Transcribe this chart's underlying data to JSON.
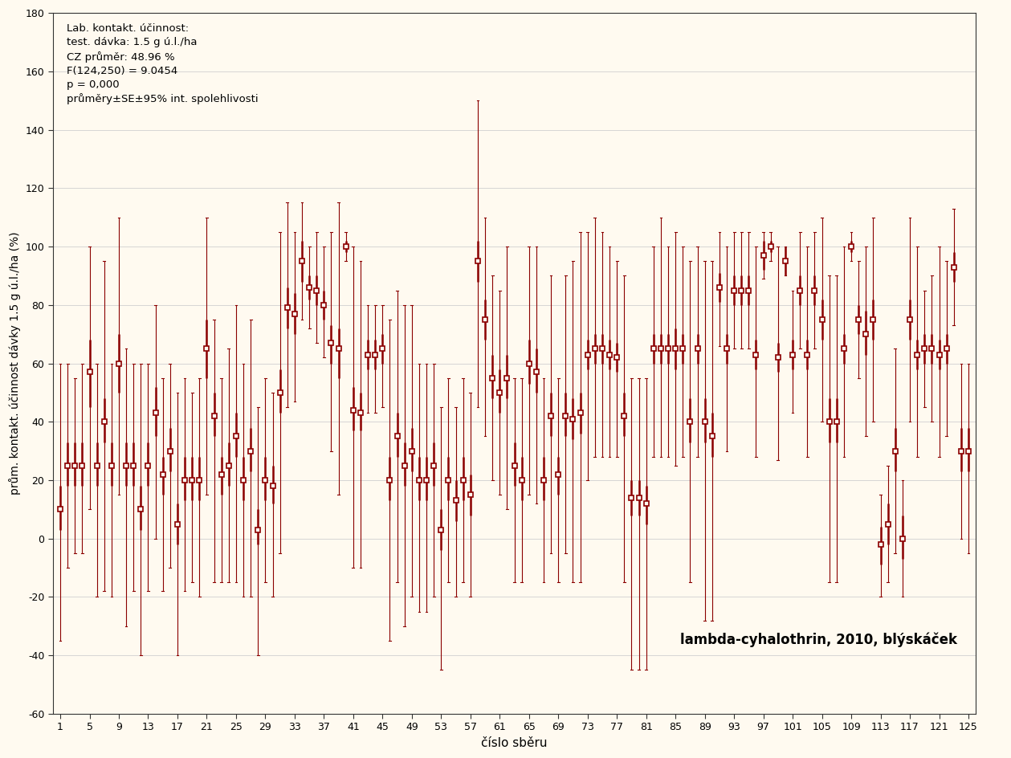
{
  "title_annotation": "lambda-cyhalothrin, 2010, blýskáček",
  "info_text": "Lab. kontakt. účinnost:\ntest. dávka: 1.5 g ú.l./ha\nCZ průměr: 48.96 %\nF(124,250) = 9.0454\np = 0,000\nprůměry±SE±95% int. spolehlivosti",
  "xlabel": "číslo sběru",
  "ylabel": "prům. kontakt. účinnost dávky 1.5 g ú.l./ha (%)",
  "xlim": [
    0,
    126
  ],
  "ylim": [
    -60,
    180
  ],
  "yticks": [
    -60,
    -40,
    -20,
    0,
    20,
    40,
    60,
    80,
    100,
    120,
    140,
    160,
    180
  ],
  "xticks": [
    1,
    5,
    9,
    13,
    17,
    21,
    25,
    29,
    33,
    37,
    41,
    45,
    49,
    53,
    57,
    61,
    65,
    69,
    73,
    77,
    81,
    85,
    89,
    93,
    97,
    101,
    105,
    109,
    113,
    117,
    121,
    125
  ],
  "color": "#8B0000",
  "background_color": "#FFFAF0",
  "means": [
    10,
    25,
    25,
    25,
    57,
    25,
    40,
    25,
    60,
    25,
    25,
    10,
    25,
    43,
    22,
    30,
    5,
    20,
    20,
    20,
    65,
    42,
    22,
    25,
    35,
    20,
    30,
    3,
    20,
    18,
    50,
    79,
    77,
    95,
    86,
    85,
    80,
    67,
    65,
    100,
    44,
    43,
    63,
    63,
    65,
    20,
    35,
    25,
    30,
    20,
    20,
    25,
    3,
    20,
    13,
    20,
    15,
    95,
    75,
    55,
    50,
    55,
    25,
    20,
    60,
    57,
    20,
    42,
    22,
    42,
    41,
    43,
    63,
    65,
    65,
    63,
    62,
    42,
    14,
    14,
    12,
    65,
    65,
    65,
    65,
    65,
    40,
    65,
    40,
    35,
    86,
    65,
    85,
    85,
    85,
    63,
    97,
    100,
    62,
    95,
    63,
    85,
    63,
    85,
    75,
    40,
    40,
    65,
    100,
    75,
    70,
    75,
    -2,
    5,
    30,
    0,
    75,
    63,
    65,
    65,
    63,
    65,
    93,
    30,
    30
  ],
  "ci_lo": [
    -35,
    -10,
    -5,
    -5,
    10,
    -20,
    -18,
    -20,
    15,
    -30,
    -18,
    -40,
    -18,
    0,
    -18,
    -10,
    -40,
    -18,
    -15,
    -20,
    15,
    -15,
    -15,
    -15,
    -15,
    -20,
    -20,
    -40,
    -15,
    -20,
    -5,
    45,
    47,
    75,
    72,
    67,
    62,
    30,
    15,
    95,
    -10,
    -10,
    43,
    43,
    45,
    -35,
    -15,
    -30,
    -20,
    -25,
    -25,
    -20,
    -45,
    -15,
    -20,
    -15,
    -20,
    45,
    35,
    20,
    15,
    10,
    -15,
    -15,
    15,
    12,
    -15,
    -5,
    -15,
    -5,
    -15,
    -15,
    20,
    28,
    28,
    28,
    28,
    -15,
    -45,
    -45,
    -45,
    28,
    28,
    28,
    25,
    28,
    -15,
    28,
    -28,
    -28,
    66,
    30,
    65,
    65,
    65,
    28,
    89,
    95,
    27,
    90,
    43,
    65,
    28,
    65,
    40,
    -15,
    -15,
    28,
    95,
    55,
    35,
    40,
    -20,
    -15,
    -5,
    -20,
    40,
    28,
    45,
    40,
    28,
    35,
    73,
    0,
    -5
  ],
  "ci_hi": [
    60,
    60,
    55,
    60,
    100,
    60,
    95,
    60,
    110,
    65,
    60,
    60,
    60,
    80,
    55,
    60,
    50,
    55,
    50,
    55,
    110,
    75,
    55,
    65,
    80,
    60,
    75,
    45,
    55,
    50,
    105,
    115,
    105,
    115,
    100,
    105,
    100,
    105,
    115,
    105,
    100,
    95,
    80,
    80,
    80,
    75,
    85,
    80,
    80,
    60,
    60,
    60,
    45,
    55,
    45,
    55,
    50,
    150,
    110,
    90,
    85,
    100,
    55,
    55,
    100,
    100,
    55,
    90,
    55,
    90,
    95,
    105,
    105,
    110,
    105,
    100,
    95,
    90,
    55,
    55,
    55,
    100,
    110,
    100,
    105,
    100,
    95,
    100,
    95,
    95,
    105,
    100,
    105,
    105,
    105,
    100,
    105,
    105,
    100,
    100,
    85,
    105,
    100,
    105,
    110,
    90,
    90,
    100,
    105,
    95,
    100,
    110,
    15,
    25,
    65,
    20,
    110,
    100,
    85,
    90,
    100,
    95,
    113,
    60,
    60
  ],
  "se_lo": [
    3,
    18,
    18,
    18,
    45,
    18,
    33,
    18,
    50,
    18,
    18,
    3,
    18,
    35,
    15,
    23,
    -2,
    13,
    13,
    13,
    55,
    35,
    15,
    18,
    28,
    13,
    23,
    -2,
    13,
    12,
    43,
    72,
    70,
    88,
    82,
    80,
    75,
    60,
    55,
    98,
    37,
    37,
    58,
    58,
    60,
    13,
    28,
    18,
    23,
    13,
    13,
    18,
    -4,
    13,
    6,
    13,
    8,
    88,
    68,
    48,
    43,
    48,
    18,
    13,
    53,
    50,
    13,
    35,
    15,
    35,
    34,
    36,
    58,
    60,
    60,
    58,
    57,
    35,
    8,
    8,
    5,
    60,
    60,
    60,
    58,
    60,
    33,
    60,
    33,
    28,
    81,
    60,
    80,
    80,
    80,
    58,
    92,
    98,
    57,
    90,
    58,
    80,
    58,
    80,
    68,
    33,
    33,
    60,
    98,
    70,
    63,
    68,
    -9,
    -2,
    23,
    -7,
    68,
    58,
    60,
    60,
    58,
    60,
    88,
    23,
    23
  ],
  "se_hi": [
    18,
    33,
    33,
    33,
    68,
    33,
    48,
    33,
    70,
    33,
    33,
    18,
    33,
    52,
    28,
    38,
    12,
    28,
    28,
    28,
    75,
    50,
    28,
    33,
    43,
    28,
    38,
    10,
    28,
    25,
    58,
    86,
    84,
    102,
    90,
    90,
    85,
    73,
    72,
    102,
    52,
    50,
    68,
    68,
    70,
    28,
    43,
    33,
    38,
    28,
    28,
    33,
    10,
    28,
    20,
    28,
    22,
    102,
    82,
    63,
    58,
    63,
    33,
    28,
    68,
    65,
    28,
    50,
    28,
    50,
    48,
    50,
    68,
    70,
    70,
    68,
    67,
    50,
    20,
    20,
    18,
    70,
    70,
    70,
    72,
    70,
    48,
    70,
    48,
    43,
    91,
    70,
    90,
    90,
    90,
    68,
    102,
    102,
    67,
    100,
    68,
    90,
    68,
    90,
    82,
    48,
    48,
    70,
    102,
    80,
    78,
    82,
    4,
    12,
    38,
    8,
    82,
    68,
    70,
    70,
    68,
    70,
    98,
    38,
    38
  ]
}
